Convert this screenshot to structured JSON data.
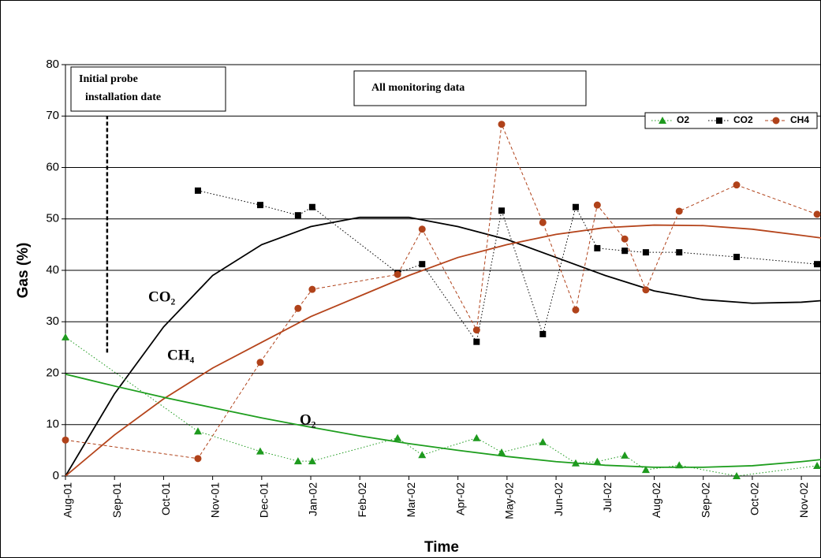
{
  "chart_data": {
    "type": "line",
    "xlabel": "Time",
    "ylabel": "Gas (%)",
    "xlim": [
      0,
      15.4
    ],
    "ylim": [
      0,
      80
    ],
    "yticks": [
      0,
      10,
      20,
      30,
      40,
      50,
      60,
      70,
      80
    ],
    "xticks": [
      {
        "value": 0,
        "label": "Aug-01"
      },
      {
        "value": 1,
        "label": "Sep-01"
      },
      {
        "value": 2,
        "label": "Oct-01"
      },
      {
        "value": 3,
        "label": "Nov-01"
      },
      {
        "value": 4,
        "label": "Dec-01"
      },
      {
        "value": 5,
        "label": "Jan-02"
      },
      {
        "value": 6,
        "label": "Feb-02"
      },
      {
        "value": 7,
        "label": "Mar-02"
      },
      {
        "value": 8,
        "label": "Apr-02"
      },
      {
        "value": 9,
        "label": "May-02"
      },
      {
        "value": 10,
        "label": "Jun-02"
      },
      {
        "value": 11,
        "label": "Jul-02"
      },
      {
        "value": 12,
        "label": "Aug-02"
      },
      {
        "value": 13,
        "label": "Sep-02"
      },
      {
        "value": 14,
        "label": "Oct-02"
      },
      {
        "value": 15,
        "label": "Nov-02"
      }
    ],
    "grid": true,
    "legend": "top-right",
    "series": [
      {
        "name": "O2",
        "color": "#1e9a1e",
        "marker": "triangle",
        "dash": "dotted",
        "x": [
          0,
          2.7,
          3.97,
          4.74,
          5.03,
          6.77,
          7.27,
          8.38,
          8.89,
          9.73,
          10.4,
          10.84,
          11.4,
          11.83,
          12.51,
          13.68,
          15.32
        ],
        "values": [
          27.0,
          8.7,
          4.8,
          2.9,
          2.9,
          7.4,
          4.1,
          7.4,
          4.6,
          6.6,
          2.5,
          2.8,
          4.0,
          1.2,
          2.1,
          0,
          2.0
        ]
      },
      {
        "name": "CO2",
        "color": "#000000",
        "marker": "square",
        "dash": "dotted",
        "x": [
          2.7,
          3.97,
          4.74,
          5.03,
          6.77,
          7.27,
          8.38,
          8.89,
          9.73,
          10.4,
          10.84,
          11.4,
          11.83,
          12.51,
          13.68,
          15.32
        ],
        "values": [
          55.5,
          52.7,
          50.7,
          52.3,
          39.5,
          41.2,
          26.1,
          51.6,
          27.6,
          52.3,
          44.3,
          43.8,
          43.5,
          43.5,
          42.6,
          41.2
        ]
      },
      {
        "name": "CH4",
        "color": "#b0421a",
        "marker": "circle",
        "dash": "dashed",
        "x": [
          0,
          2.7,
          3.97,
          4.74,
          5.03,
          6.77,
          7.27,
          8.38,
          8.89,
          9.73,
          10.4,
          10.84,
          11.4,
          11.83,
          12.51,
          13.68,
          15.32
        ],
        "values": [
          7.0,
          3.4,
          22.1,
          32.6,
          36.3,
          39.2,
          48.0,
          28.4,
          68.4,
          49.3,
          32.3,
          52.7,
          46.1,
          36.2,
          51.5,
          56.6,
          50.9
        ]
      }
    ],
    "trendlines": [
      {
        "color": "#000000",
        "x": [
          0,
          1,
          2,
          3,
          4,
          5,
          6,
          7,
          8,
          9,
          10,
          11,
          12,
          13,
          14,
          15,
          15.4
        ],
        "values": [
          0,
          16,
          29,
          39,
          45,
          48.5,
          50.3,
          50.3,
          48.5,
          46,
          42.5,
          39,
          36,
          34.3,
          33.6,
          33.8,
          34.1
        ]
      },
      {
        "color": "#b5441b",
        "x": [
          0,
          1,
          2,
          3,
          4,
          5,
          6,
          7,
          8,
          9,
          10,
          11,
          12,
          13,
          14,
          15,
          15.4
        ],
        "values": [
          0,
          8,
          15,
          21,
          26,
          31,
          35,
          39,
          42.5,
          45,
          47,
          48.3,
          48.8,
          48.7,
          48,
          46.8,
          46.3
        ]
      },
      {
        "color": "#1e9e1e",
        "x": [
          0,
          1,
          2,
          3,
          4,
          5,
          6,
          7,
          8,
          9,
          10,
          11,
          12,
          13,
          14,
          15,
          15.4
        ],
        "values": [
          19.8,
          17.5,
          15.3,
          13.3,
          11.3,
          9.5,
          7.8,
          6.3,
          5,
          3.8,
          2.8,
          2.1,
          1.7,
          1.7,
          2.0,
          2.8,
          3.2
        ]
      }
    ],
    "install_marker": {
      "x": 0.85,
      "y": [
        24,
        70
      ]
    },
    "annotations": {
      "probe_box": [
        "Initial probe",
        "installation  date"
      ],
      "data_box": "All monitoring data",
      "co2_label": "CO₂",
      "ch4_label": "CH₄",
      "o2_label": "O₂"
    }
  }
}
